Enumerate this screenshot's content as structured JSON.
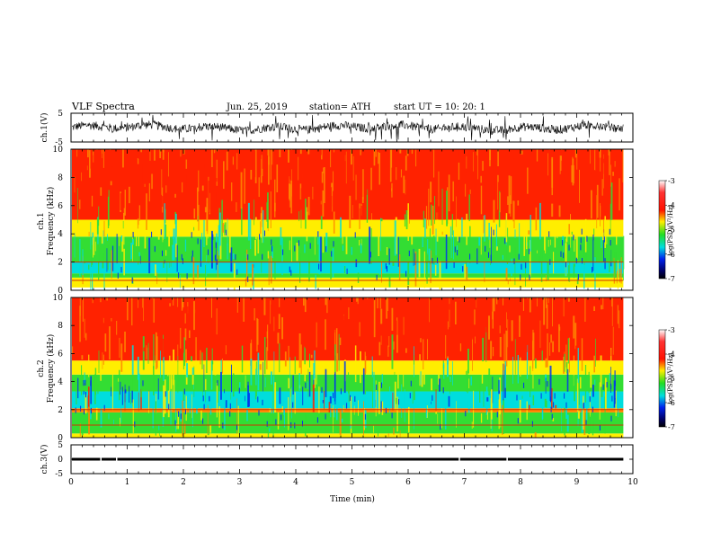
{
  "header": {
    "title": "VLF  Spectra",
    "date": "Jun. 25, 2019",
    "station": "station= ATH",
    "start_ut": "start  UT  =     10: 20: 1"
  },
  "colors": {
    "red": "#ff2200",
    "orange": "#ff8800",
    "yellow": "#ffee00",
    "green": "#33dd33",
    "cyan": "#00dddd",
    "blue": "#0033ee",
    "black": "#000000",
    "white": "#ffffff"
  },
  "chart_data": [
    {
      "type": "line",
      "name": "ch1-waveform",
      "ylabel": "ch.1(V)",
      "ylim": [
        -5,
        5
      ],
      "yticks": [
        "5",
        "-5"
      ],
      "xlim": [
        0,
        10
      ],
      "baseline_v": 0,
      "typical_amplitude_v": 1.5,
      "spike_amplitude_v": 4.5
    },
    {
      "type": "heatmap",
      "name": "ch1-spectrogram",
      "ylabel": "ch.1\nFrequency (kHz)",
      "ylabel_lines": [
        "ch.1",
        "Frequency  (kHz)"
      ],
      "ylim": [
        0,
        10
      ],
      "yticks": [
        "0",
        "2",
        "4",
        "6",
        "8",
        "10"
      ],
      "xlim": [
        0,
        9.83
      ],
      "colorbar": {
        "label": "log(PSD)(V²/Hz)",
        "range": [
          -7,
          -3
        ],
        "ticks": [
          "-3",
          "-4",
          "-5",
          "-6",
          "-7"
        ]
      },
      "bands_khz": [
        {
          "from": 0,
          "to": 0.2,
          "color": "white"
        },
        {
          "from": 0.2,
          "to": 0.9,
          "color": "yellow"
        },
        {
          "from": 0.9,
          "to": 1.2,
          "color": "green"
        },
        {
          "from": 1.2,
          "to": 2.0,
          "color": "cyan"
        },
        {
          "from": 2.0,
          "to": 3.8,
          "color": "green"
        },
        {
          "from": 3.8,
          "to": 5.0,
          "color": "yellow"
        },
        {
          "from": 5.0,
          "to": 10.0,
          "color": "red"
        }
      ],
      "lines_khz": [
        0.7,
        2.0
      ]
    },
    {
      "type": "heatmap",
      "name": "ch2-spectrogram",
      "ylabel_lines": [
        "ch.2",
        "Frequency  (kHz)"
      ],
      "ylim": [
        0,
        10
      ],
      "yticks": [
        "0",
        "2",
        "4",
        "6",
        "8",
        "10"
      ],
      "xlim": [
        0,
        9.83
      ],
      "colorbar": {
        "label": "log(PSD)(V²/Hz)",
        "range": [
          -7,
          -3
        ],
        "ticks": [
          "-3",
          "-4",
          "-5",
          "-6",
          "-7"
        ]
      },
      "bands_khz": [
        {
          "from": 0,
          "to": 0.3,
          "color": "yellow"
        },
        {
          "from": 0.3,
          "to": 1.8,
          "color": "green"
        },
        {
          "from": 1.8,
          "to": 2.1,
          "color": "orange"
        },
        {
          "from": 2.1,
          "to": 3.3,
          "color": "cyan"
        },
        {
          "from": 3.3,
          "to": 4.5,
          "color": "green"
        },
        {
          "from": 4.5,
          "to": 5.5,
          "color": "yellow"
        },
        {
          "from": 5.5,
          "to": 10.0,
          "color": "red"
        }
      ],
      "lines_khz": [
        0.9,
        2.0
      ]
    },
    {
      "type": "line",
      "name": "ch3-waveform",
      "ylabel": "ch.3(V)",
      "ylim": [
        -5,
        5
      ],
      "yticks": [
        "5",
        "0",
        "-5"
      ],
      "xlim": [
        0,
        10
      ],
      "baseline_v": 0
    }
  ],
  "xaxis": {
    "label": "Time  (min)",
    "range": [
      0,
      10
    ],
    "ticks": [
      "0",
      "1",
      "2",
      "3",
      "4",
      "5",
      "6",
      "7",
      "8",
      "9",
      "10"
    ]
  }
}
